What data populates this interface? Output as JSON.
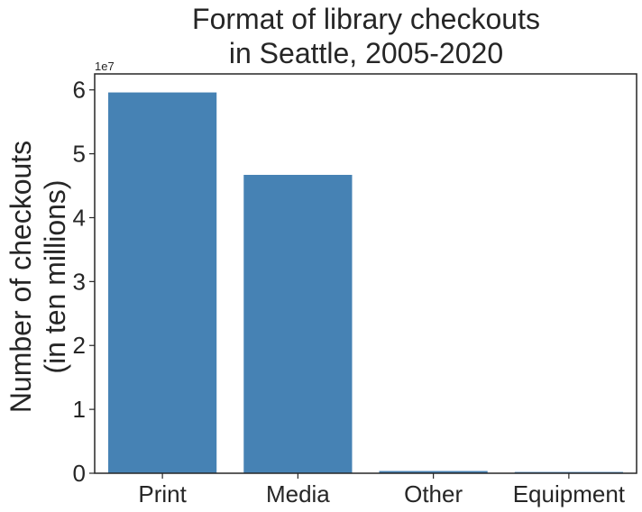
{
  "chart_data": {
    "type": "bar",
    "title_lines": [
      "Format of library checkouts",
      "in Seattle, 2005-2020"
    ],
    "ylabel_lines": [
      "Number of checkouts",
      "(in ten millions)"
    ],
    "xlabel": "",
    "y_offset_label": "1e7",
    "categories": [
      "Print",
      "Media",
      "Other",
      "Equipment"
    ],
    "values": [
      59600000,
      46700000,
      350000,
      200000
    ],
    "ylim": [
      0,
      62500000
    ],
    "yticks": [
      0,
      10000000,
      20000000,
      30000000,
      40000000,
      50000000,
      60000000
    ],
    "ytick_labels": [
      "0",
      "1",
      "2",
      "3",
      "4",
      "5",
      "6"
    ],
    "bar_color": "#4682b4",
    "grid": false,
    "legend": "none"
  }
}
